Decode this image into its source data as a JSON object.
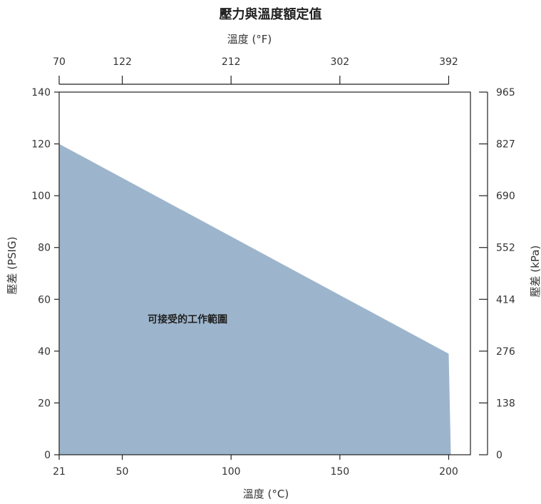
{
  "chart_data": {
    "type": "area",
    "title": "壓力與溫度額定值",
    "xlabel": "溫度 (°C)",
    "x2label": "溫度 (°F)",
    "ylabel": "壓差 (PSIG)",
    "y2label": "壓差 (kPa)",
    "xlim": [
      21,
      210
    ],
    "ylim": [
      0,
      140
    ],
    "x_ticks": [
      21,
      50,
      100,
      150,
      200
    ],
    "x_tick_labels": [
      "21",
      "50",
      "100",
      "150",
      "200"
    ],
    "x2_ticks": [
      21,
      50,
      100,
      150,
      200
    ],
    "x2_tick_labels": [
      "70",
      "122",
      "212",
      "302",
      "392"
    ],
    "y_ticks": [
      0,
      20,
      40,
      60,
      80,
      100,
      120,
      140
    ],
    "y_tick_labels": [
      "0",
      "20",
      "40",
      "60",
      "80",
      "100",
      "120",
      "140"
    ],
    "y2_ticks": [
      0,
      20,
      40,
      60,
      80,
      100,
      120,
      140
    ],
    "y2_tick_labels": [
      "0",
      "138",
      "276",
      "414",
      "552",
      "690",
      "827",
      "965"
    ],
    "grid": false,
    "series": [
      {
        "x": [
          21,
          200,
          201,
          21
        ],
        "y": [
          120,
          39,
          0,
          0
        ],
        "color": "#9db5cc"
      }
    ],
    "annotations": [
      {
        "text": "可接受的工作範圍",
        "x": 80,
        "y": 51
      }
    ]
  }
}
